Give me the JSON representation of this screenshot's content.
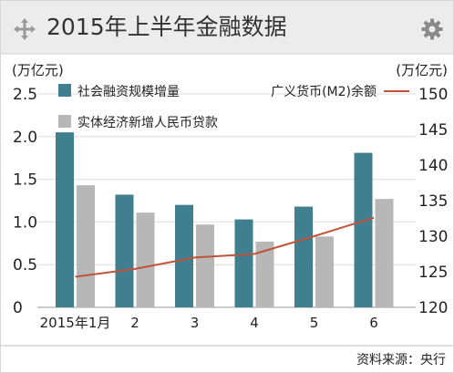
{
  "header": {
    "title": "2015年上半年金融数据",
    "left_icon": "move-arrows-icon",
    "right_icon": "gear-icon"
  },
  "chart_data": {
    "type": "bar",
    "categories": [
      "2015年1月",
      "2",
      "3",
      "4",
      "5",
      "6"
    ],
    "series": [
      {
        "name": "社会融资规模增量",
        "type": "bar",
        "axis": "left",
        "color": "#3f7f8f",
        "values": [
          2.05,
          1.32,
          1.2,
          1.03,
          1.18,
          1.81
        ]
      },
      {
        "name": "实体经济新增人民币贷款",
        "type": "bar",
        "axis": "left",
        "color": "#b7b7b7",
        "values": [
          1.43,
          1.11,
          0.97,
          0.77,
          0.83,
          1.27
        ]
      },
      {
        "name": "广义货币(M2)余额",
        "type": "line",
        "axis": "right",
        "color": "#c0533a",
        "values": [
          124.3,
          125.4,
          127.0,
          127.5,
          130.0,
          132.6
        ]
      }
    ],
    "left_axis": {
      "unit": "(万亿元)",
      "min": 0,
      "max": 2.5,
      "ticks": [
        "0",
        "0.5",
        "1.0",
        "1.5",
        "2.0",
        "2.5"
      ]
    },
    "right_axis": {
      "unit": "(万亿元)",
      "min": 120,
      "max": 150,
      "ticks": [
        "120",
        "125",
        "130",
        "135",
        "140",
        "145",
        "150"
      ]
    },
    "grid": true,
    "legend": "top"
  },
  "footer": {
    "source": "资料来源：央行"
  }
}
